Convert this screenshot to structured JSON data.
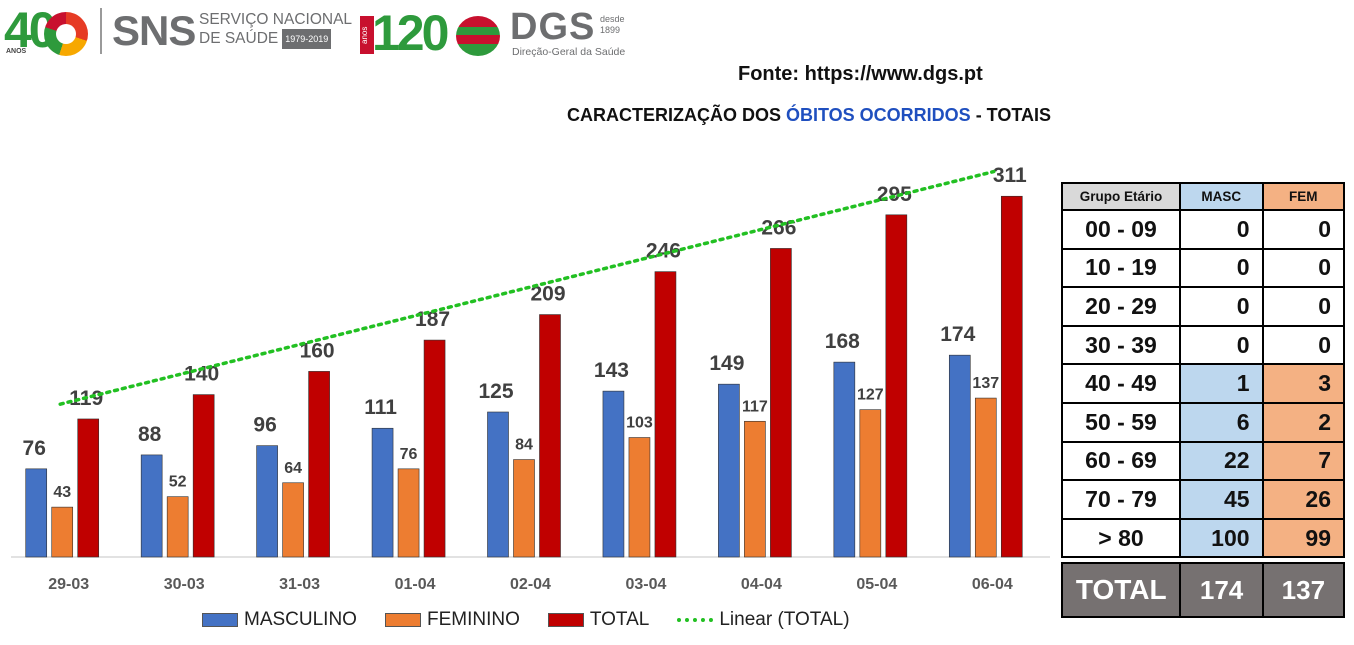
{
  "logos": {
    "anniv_number": "40",
    "anniv_small": "ANOS",
    "sns_name": "SNS",
    "sns_line1": "SERVIÇO NACIONAL",
    "sns_line2": "DE SAÚDE",
    "sns_years": "1979-2019",
    "dgs_anniv_number": "120",
    "dgs_anniv_small": "anos",
    "dgs_name": "DGS",
    "dgs_since_line1": "desde",
    "dgs_since_line2": "1899",
    "dgs_full_name": "Direção-Geral da Saúde"
  },
  "header": {
    "source": "Fonte: https://www.dgs.pt",
    "title_part1": "CARACTERIZAÇÃO DOS ",
    "title_highlight": "ÓBITOS OCORRIDOS",
    "title_part2": " - TOTAIS"
  },
  "chart_data": {
    "type": "bar",
    "categories": [
      "29-03",
      "30-03",
      "31-03",
      "01-04",
      "02-04",
      "03-04",
      "04-04",
      "05-04",
      "06-04"
    ],
    "series": [
      {
        "name": "MASCULINO",
        "color": "#4472c4",
        "values": [
          76,
          88,
          96,
          111,
          125,
          143,
          149,
          168,
          174
        ]
      },
      {
        "name": "FEMININO",
        "color": "#ed7d31",
        "values": [
          43,
          52,
          64,
          76,
          84,
          103,
          117,
          127,
          137
        ]
      },
      {
        "name": "TOTAL",
        "color": "#c00000",
        "values": [
          119,
          140,
          160,
          187,
          209,
          246,
          266,
          295,
          311
        ]
      }
    ],
    "trendline": {
      "name": "Linear (TOTAL)",
      "of_series": "TOTAL",
      "type": "linear",
      "color": "#22c022"
    },
    "ylim": [
      0,
      340
    ],
    "grid": false,
    "legend": "bottom"
  },
  "legend_labels": [
    "MASCULINO",
    "FEMININO",
    "TOTAL",
    "Linear (TOTAL)"
  ],
  "age_table": {
    "headers": [
      "Grupo Etário",
      "MASC",
      "FEM"
    ],
    "rows": [
      {
        "group": "00 - 09",
        "masc": "0",
        "fem": "0"
      },
      {
        "group": "10 - 19",
        "masc": "0",
        "fem": "0"
      },
      {
        "group": "20 - 29",
        "masc": "0",
        "fem": "0"
      },
      {
        "group": "30 - 39",
        "masc": "0",
        "fem": "0"
      },
      {
        "group": "40 - 49",
        "masc": "1",
        "fem": "3"
      },
      {
        "group": "50 - 59",
        "masc": "6",
        "fem": "2"
      },
      {
        "group": "60 - 69",
        "masc": "22",
        "fem": "7"
      },
      {
        "group": "70 - 79",
        "masc": "45",
        "fem": "26"
      },
      {
        "group": "> 80",
        "masc": "100",
        "fem": "99"
      }
    ],
    "total": {
      "label": "TOTAL",
      "masc": "174",
      "fem": "137"
    }
  }
}
